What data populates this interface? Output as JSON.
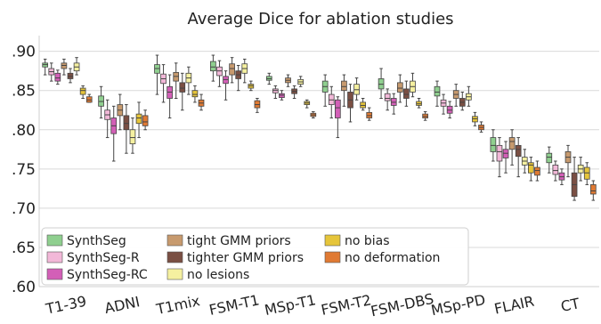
{
  "chart_data": {
    "type": "box",
    "title": "Average Dice for ablation studies",
    "xlabel": "",
    "ylabel": "",
    "ylim": [
      0.6,
      0.92
    ],
    "yticks": [
      0.6,
      0.65,
      0.7,
      0.75,
      0.8,
      0.85,
      0.9
    ],
    "ytick_labels": [
      ".60",
      ".65",
      ".70",
      ".75",
      ".80",
      ".85",
      ".90"
    ],
    "grid": true,
    "legend_position": "bottom-left",
    "categories": [
      "T1-39",
      "ADNI",
      "T1mix",
      "FSM-T1",
      "MSp-T1",
      "FSM-T2",
      "FSM-DBS",
      "MSp-PD",
      "FLAIR",
      "CT"
    ],
    "series": [
      {
        "name": "SynthSeg",
        "color": "#8fcf8f",
        "boxes": [
          [
            0.87,
            0.88,
            0.883,
            0.885,
            0.89
          ],
          [
            0.815,
            0.83,
            0.836,
            0.843,
            0.855
          ],
          [
            0.845,
            0.872,
            0.878,
            0.883,
            0.895
          ],
          [
            0.862,
            0.875,
            0.88,
            0.887,
            0.895
          ],
          [
            0.858,
            0.863,
            0.865,
            0.868,
            0.872
          ],
          [
            0.83,
            0.848,
            0.855,
            0.862,
            0.87
          ],
          [
            0.84,
            0.852,
            0.858,
            0.865,
            0.878
          ],
          [
            0.83,
            0.843,
            0.848,
            0.855,
            0.862
          ],
          [
            0.76,
            0.772,
            0.78,
            0.79,
            0.8
          ],
          [
            0.745,
            0.758,
            0.765,
            0.77,
            0.778
          ]
        ]
      },
      {
        "name": "SynthSeg-R",
        "color": "#f2b8d8",
        "boxes": [
          [
            0.862,
            0.87,
            0.874,
            0.878,
            0.885
          ],
          [
            0.79,
            0.813,
            0.819,
            0.825,
            0.838
          ],
          [
            0.835,
            0.859,
            0.865,
            0.871,
            0.883
          ],
          [
            0.855,
            0.869,
            0.875,
            0.88,
            0.888
          ],
          [
            0.84,
            0.847,
            0.85,
            0.852,
            0.856
          ],
          [
            0.815,
            0.832,
            0.838,
            0.845,
            0.855
          ],
          [
            0.825,
            0.837,
            0.84,
            0.846,
            0.852
          ],
          [
            0.82,
            0.83,
            0.834,
            0.838,
            0.845
          ],
          [
            0.74,
            0.76,
            0.772,
            0.78,
            0.79
          ],
          [
            0.735,
            0.743,
            0.748,
            0.755,
            0.76
          ]
        ]
      },
      {
        "name": "SynthSeg-RC",
        "color": "#d35fb7",
        "boxes": [
          [
            0.858,
            0.862,
            0.866,
            0.872,
            0.876
          ],
          [
            0.76,
            0.795,
            0.805,
            0.815,
            0.83
          ],
          [
            0.815,
            0.84,
            0.848,
            0.855,
            0.87
          ],
          [
            0.838,
            0.859,
            0.864,
            0.868,
            0.875
          ],
          [
            0.838,
            0.841,
            0.844,
            0.846,
            0.85
          ],
          [
            0.79,
            0.815,
            0.828,
            0.838,
            0.842
          ],
          [
            0.82,
            0.831,
            0.835,
            0.84,
            0.846
          ],
          [
            0.815,
            0.821,
            0.825,
            0.83,
            0.836
          ],
          [
            0.745,
            0.764,
            0.77,
            0.775,
            0.785
          ],
          [
            0.73,
            0.736,
            0.74,
            0.745,
            0.75
          ]
        ]
      },
      {
        "name": "tight GMM priors",
        "color": "#c79a6e",
        "boxes": [
          [
            0.87,
            0.878,
            0.882,
            0.885,
            0.89
          ],
          [
            0.8,
            0.818,
            0.825,
            0.832,
            0.845
          ],
          [
            0.84,
            0.862,
            0.868,
            0.873,
            0.885
          ],
          [
            0.86,
            0.87,
            0.878,
            0.884,
            0.892
          ],
          [
            0.855,
            0.86,
            0.863,
            0.866,
            0.87
          ],
          [
            0.83,
            0.85,
            0.855,
            0.862,
            0.87
          ],
          [
            0.835,
            0.848,
            0.853,
            0.86,
            0.87
          ],
          [
            0.83,
            0.84,
            0.845,
            0.85,
            0.858
          ],
          [
            0.755,
            0.775,
            0.785,
            0.79,
            0.8
          ],
          [
            0.74,
            0.758,
            0.765,
            0.772,
            0.78
          ]
        ]
      },
      {
        "name": "tighter GMM priors",
        "color": "#7a4f43",
        "boxes": [
          [
            0.86,
            0.865,
            0.868,
            0.872,
            0.878
          ],
          [
            0.77,
            0.8,
            0.808,
            0.818,
            0.832
          ],
          [
            0.825,
            0.848,
            0.853,
            0.86,
            0.872
          ],
          [
            0.85,
            0.865,
            0.87,
            0.875,
            0.882
          ],
          [
            0.84,
            0.846,
            0.849,
            0.852,
            0.856
          ],
          [
            0.81,
            0.828,
            0.838,
            0.848,
            0.858
          ],
          [
            0.83,
            0.84,
            0.845,
            0.852,
            0.862
          ],
          [
            0.825,
            0.83,
            0.835,
            0.84,
            0.848
          ],
          [
            0.74,
            0.766,
            0.775,
            0.78,
            0.79
          ],
          [
            0.71,
            0.715,
            0.73,
            0.745,
            0.765
          ]
        ]
      },
      {
        "name": "no lesions",
        "color": "#f5f0a0",
        "boxes": [
          [
            0.87,
            0.875,
            0.88,
            0.885,
            0.892
          ],
          [
            0.77,
            0.782,
            0.79,
            0.8,
            0.815
          ],
          [
            0.845,
            0.86,
            0.866,
            0.872,
            0.88
          ],
          [
            0.86,
            0.872,
            0.878,
            0.884,
            0.89
          ],
          [
            0.855,
            0.858,
            0.861,
            0.864,
            0.868
          ],
          [
            0.838,
            0.845,
            0.851,
            0.858,
            0.866
          ],
          [
            0.842,
            0.848,
            0.855,
            0.862,
            0.872
          ],
          [
            0.83,
            0.838,
            0.842,
            0.846,
            0.855
          ],
          [
            0.745,
            0.755,
            0.76,
            0.765,
            0.775
          ],
          [
            0.735,
            0.745,
            0.75,
            0.755,
            0.765
          ]
        ]
      },
      {
        "name": "no bias",
        "color": "#e6c53a",
        "boxes": [
          [
            0.84,
            0.845,
            0.85,
            0.853,
            0.856
          ],
          [
            0.79,
            0.808,
            0.815,
            0.82,
            0.835
          ],
          [
            0.835,
            0.842,
            0.845,
            0.85,
            0.856
          ],
          [
            0.85,
            0.853,
            0.856,
            0.858,
            0.862
          ],
          [
            0.828,
            0.832,
            0.834,
            0.836,
            0.838
          ],
          [
            0.825,
            0.828,
            0.831,
            0.835,
            0.84
          ],
          [
            0.828,
            0.831,
            0.833,
            0.836,
            0.84
          ],
          [
            0.805,
            0.81,
            0.814,
            0.817,
            0.822
          ],
          [
            0.735,
            0.745,
            0.755,
            0.758,
            0.765
          ],
          [
            0.73,
            0.737,
            0.745,
            0.752,
            0.758
          ]
        ]
      },
      {
        "name": "no deformation",
        "color": "#e07a33",
        "boxes": [
          [
            0.835,
            0.835,
            0.838,
            0.842,
            0.845
          ],
          [
            0.8,
            0.805,
            0.81,
            0.818,
            0.825
          ],
          [
            0.825,
            0.83,
            0.834,
            0.838,
            0.845
          ],
          [
            0.822,
            0.828,
            0.832,
            0.837,
            0.84
          ],
          [
            0.815,
            0.817,
            0.819,
            0.821,
            0.823
          ],
          [
            0.812,
            0.815,
            0.818,
            0.822,
            0.828
          ],
          [
            0.812,
            0.815,
            0.817,
            0.82,
            0.823
          ],
          [
            0.797,
            0.8,
            0.803,
            0.806,
            0.81
          ],
          [
            0.735,
            0.742,
            0.748,
            0.752,
            0.76
          ],
          [
            0.71,
            0.718,
            0.722,
            0.73,
            0.735
          ]
        ]
      }
    ]
  }
}
